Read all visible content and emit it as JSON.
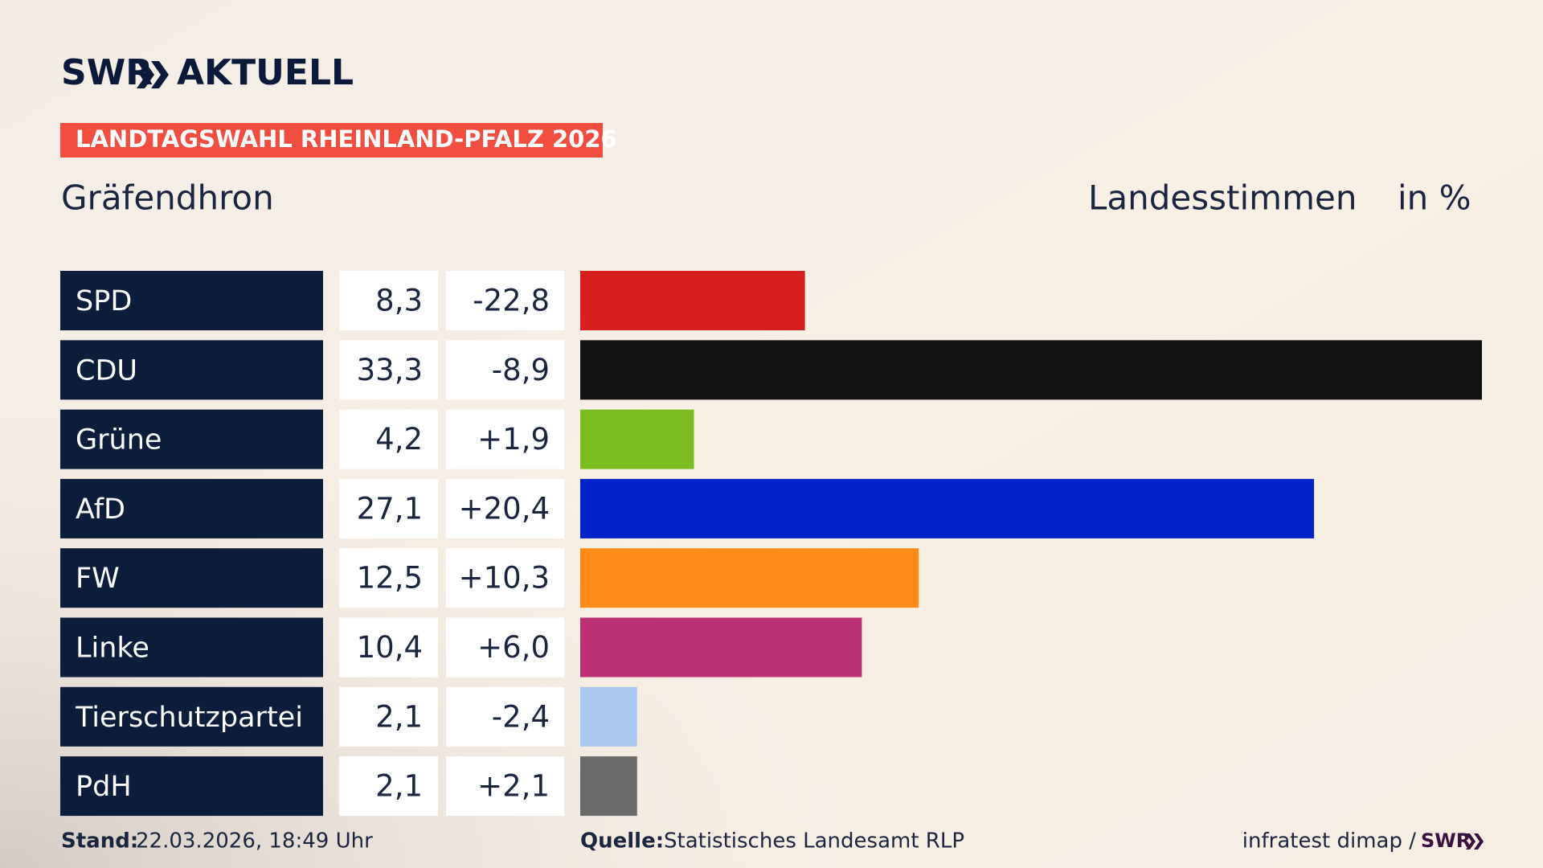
{
  "header": {
    "logo": "SWR",
    "logo_suffix": "AKTUELL"
  },
  "chart_data": {
    "type": "bar",
    "title": "LANDTAGSWAHL RHEINLAND-PFALZ 2026",
    "subtitle": "Gräfendhron",
    "value_heading": "Landesstimmen",
    "unit": "in %",
    "categories": [
      "SPD",
      "CDU",
      "Grüne",
      "AfD",
      "FW",
      "Linke",
      "Tierschutzpartei",
      "PdH"
    ],
    "values": [
      8.3,
      33.3,
      4.2,
      27.1,
      12.5,
      10.4,
      2.1,
      2.1
    ],
    "value_labels": [
      "8,3",
      "33,3",
      "4,2",
      "27,1",
      "12,5",
      "10,4",
      "2,1",
      "2,1"
    ],
    "change_labels": [
      "-22,8",
      "-8,9",
      "+1,9",
      "+20,4",
      "+10,3",
      "+6,0",
      "-2,4",
      "+2,1"
    ],
    "colors": [
      "#d71f1f",
      "#121212",
      "#7bbd1e",
      "#0022c8",
      "#ff8c19",
      "#bc3075",
      "#aac8ee",
      "#6a6a6a"
    ]
  },
  "footer": {
    "date_label": "Stand:",
    "date": "22.03.2026, 18:49 Uhr",
    "source_label": "Quelle:",
    "source": "Statistisches Landesamt RLP",
    "credit": "infratest dimap /",
    "credit_logo": "SWR"
  }
}
